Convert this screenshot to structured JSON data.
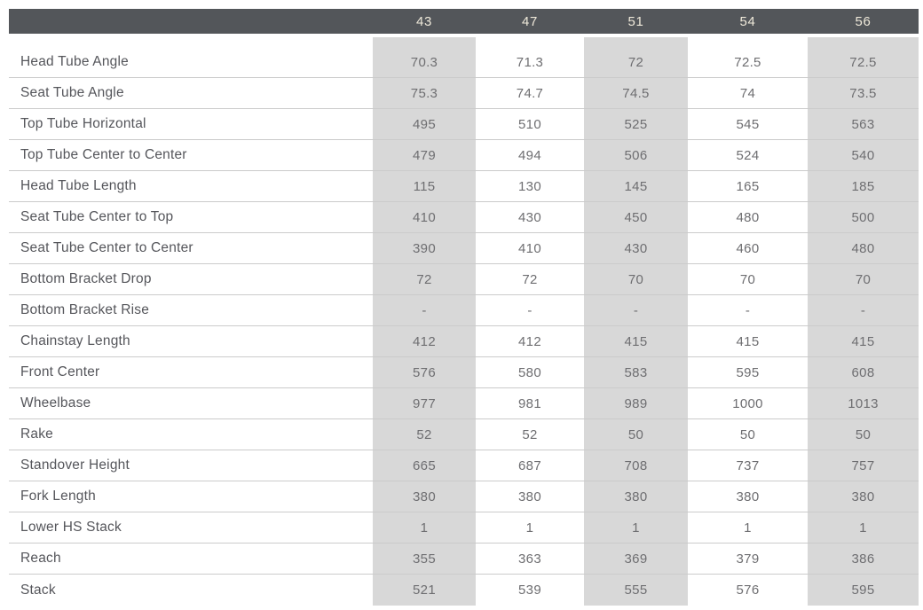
{
  "chart_data": {
    "type": "table",
    "columns": [
      "43",
      "47",
      "51",
      "54",
      "56"
    ],
    "rows": [
      {
        "label": "Head Tube Angle",
        "values": [
          "70.3",
          "71.3",
          "72",
          "72.5",
          "72.5"
        ]
      },
      {
        "label": "Seat Tube Angle",
        "values": [
          "75.3",
          "74.7",
          "74.5",
          "74",
          "73.5"
        ]
      },
      {
        "label": "Top Tube Horizontal",
        "values": [
          "495",
          "510",
          "525",
          "545",
          "563"
        ]
      },
      {
        "label": "Top Tube Center to Center",
        "values": [
          "479",
          "494",
          "506",
          "524",
          "540"
        ]
      },
      {
        "label": "Head Tube Length",
        "values": [
          "115",
          "130",
          "145",
          "165",
          "185"
        ]
      },
      {
        "label": "Seat Tube Center to Top",
        "values": [
          "410",
          "430",
          "450",
          "480",
          "500"
        ]
      },
      {
        "label": "Seat Tube Center to Center",
        "values": [
          "390",
          "410",
          "430",
          "460",
          "480"
        ]
      },
      {
        "label": "Bottom Bracket Drop",
        "values": [
          "72",
          "72",
          "70",
          "70",
          "70"
        ]
      },
      {
        "label": "Bottom Bracket Rise",
        "values": [
          "-",
          "-",
          "-",
          "-",
          "-"
        ]
      },
      {
        "label": "Chainstay Length",
        "values": [
          "412",
          "412",
          "415",
          "415",
          "415"
        ]
      },
      {
        "label": "Front Center",
        "values": [
          "576",
          "580",
          "583",
          "595",
          "608"
        ]
      },
      {
        "label": "Wheelbase",
        "values": [
          "977",
          "981",
          "989",
          "1000",
          "1013"
        ]
      },
      {
        "label": "Rake",
        "values": [
          "52",
          "52",
          "50",
          "50",
          "50"
        ]
      },
      {
        "label": "Standover Height",
        "values": [
          "665",
          "687",
          "708",
          "737",
          "757"
        ]
      },
      {
        "label": "Fork Length",
        "values": [
          "380",
          "380",
          "380",
          "380",
          "380"
        ]
      },
      {
        "label": "Lower HS Stack",
        "values": [
          "1",
          "1",
          "1",
          "1",
          "1"
        ]
      },
      {
        "label": "Reach",
        "values": [
          "355",
          "363",
          "369",
          "379",
          "386"
        ]
      },
      {
        "label": "Stack",
        "values": [
          "521",
          "539",
          "555",
          "576",
          "595"
        ]
      }
    ],
    "shaded_columns": [
      "43",
      "51",
      "56"
    ],
    "layout_hints": {
      "grid": "horizontal row dividers only, no vertical lines",
      "legend": "none",
      "first_column": "row labels, left-aligned; size columns center-aligned"
    },
    "colors": {
      "header_bg": "#53565A",
      "header_text": "#EFE9DA",
      "shaded_column_bg": "#D8D8D8",
      "row_divider": "#CBCBCB",
      "label_text": "#55565B",
      "value_text": "#6E6E71",
      "page_bg": "#FFFFFF"
    }
  }
}
